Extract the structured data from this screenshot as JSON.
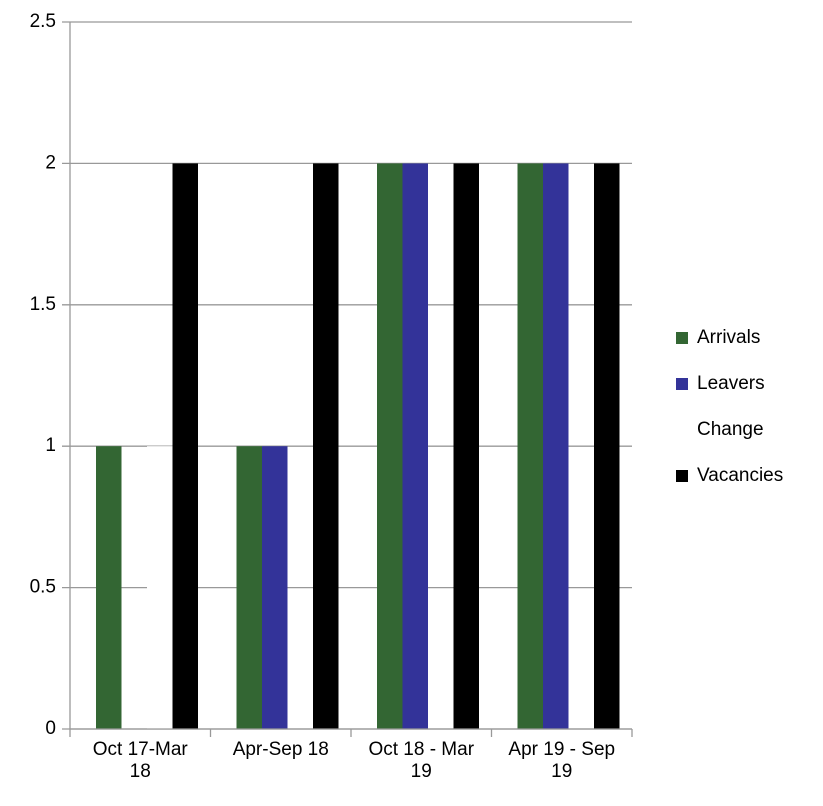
{
  "chart_data": {
    "type": "bar",
    "categories": [
      "Oct 17-Mar 18",
      "Apr-Sep 18",
      "Oct 18 - Mar 19",
      "Apr 19 - Sep 19"
    ],
    "series": [
      {
        "name": "Arrivals",
        "color": "#336633",
        "values": [
          1,
          1,
          2,
          2
        ]
      },
      {
        "name": "Leavers",
        "color": "#333399",
        "values": [
          0,
          1,
          2,
          2
        ]
      },
      {
        "name": "Change",
        "color": "#ffffff",
        "values": [
          1,
          0,
          0,
          0
        ]
      },
      {
        "name": "Vacancies",
        "color": "#000000",
        "values": [
          2,
          2,
          2,
          2
        ]
      }
    ],
    "ylim": [
      0,
      2.5
    ],
    "yticks": [
      0,
      0.5,
      1,
      1.5,
      2,
      2.5
    ],
    "grid": true,
    "legend": "right"
  }
}
